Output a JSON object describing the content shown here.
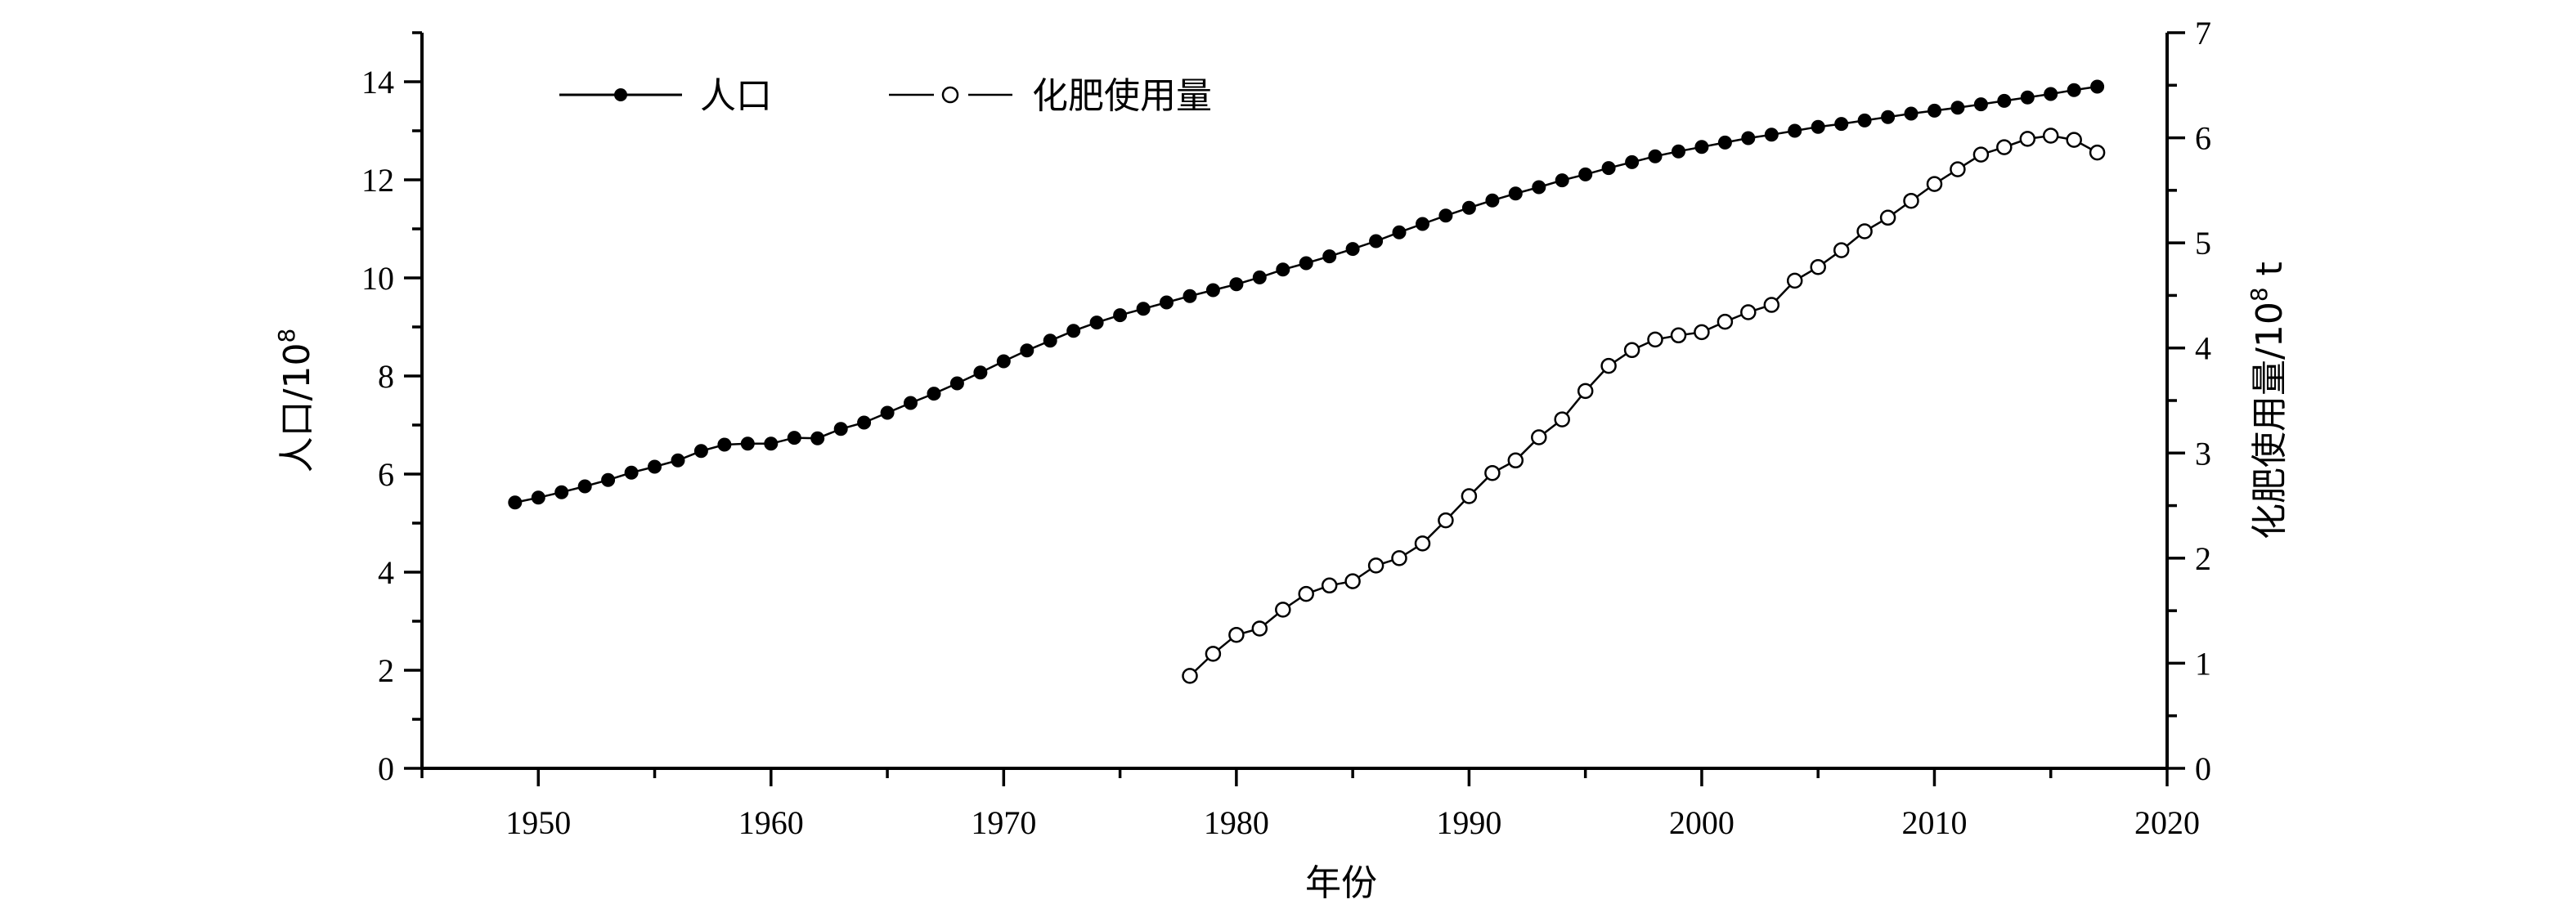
{
  "chart_data": {
    "type": "line",
    "xlabel": "年份",
    "ylabel_left": "人口/10",
    "ylabel_left_sup": "8",
    "ylabel_right": "化肥使用量/10",
    "ylabel_right_sup": "8",
    "ylabel_right_unit": " t",
    "xlim": [
      1945,
      2020
    ],
    "ylim_left": [
      0,
      15
    ],
    "ylim_right": [
      0,
      7
    ],
    "x_ticks": [
      1950,
      1960,
      1970,
      1980,
      1990,
      2000,
      2010,
      2020
    ],
    "y_left_ticks": [
      0,
      2,
      4,
      6,
      8,
      10,
      12,
      14
    ],
    "y_right_ticks": [
      0,
      1,
      2,
      3,
      4,
      5,
      6,
      7
    ],
    "grid": false,
    "legend_position": "top-left",
    "series": [
      {
        "name": "人口",
        "axis": "left",
        "marker": "filled-circle",
        "color": "#000000",
        "x": [
          1949,
          1950,
          1951,
          1952,
          1953,
          1954,
          1955,
          1956,
          1957,
          1958,
          1959,
          1960,
          1961,
          1962,
          1963,
          1964,
          1965,
          1966,
          1967,
          1968,
          1969,
          1970,
          1971,
          1972,
          1973,
          1974,
          1975,
          1976,
          1977,
          1978,
          1979,
          1980,
          1981,
          1982,
          1983,
          1984,
          1985,
          1986,
          1987,
          1988,
          1989,
          1990,
          1991,
          1992,
          1993,
          1994,
          1995,
          1996,
          1997,
          1998,
          1999,
          2000,
          2001,
          2002,
          2003,
          2004,
          2005,
          2006,
          2007,
          2008,
          2009,
          2010,
          2011,
          2012,
          2013,
          2014,
          2015,
          2016,
          2017
        ],
        "values": [
          5.42,
          5.52,
          5.63,
          5.75,
          5.88,
          6.03,
          6.15,
          6.28,
          6.47,
          6.6,
          6.62,
          6.62,
          6.74,
          6.73,
          6.92,
          7.05,
          7.25,
          7.45,
          7.64,
          7.85,
          8.07,
          8.3,
          8.52,
          8.72,
          8.92,
          9.09,
          9.24,
          9.37,
          9.5,
          9.63,
          9.75,
          9.87,
          10.01,
          10.17,
          10.3,
          10.44,
          10.59,
          10.75,
          10.93,
          11.1,
          11.27,
          11.43,
          11.58,
          11.72,
          11.85,
          11.99,
          12.11,
          12.24,
          12.36,
          12.48,
          12.58,
          12.67,
          12.76,
          12.85,
          12.92,
          13.0,
          13.08,
          13.14,
          13.21,
          13.28,
          13.35,
          13.41,
          13.47,
          13.54,
          13.61,
          13.68,
          13.75,
          13.83,
          13.9
        ]
      },
      {
        "name": "化肥使用量",
        "axis": "right",
        "marker": "open-circle",
        "color": "#000000",
        "x": [
          1978,
          1979,
          1980,
          1981,
          1982,
          1983,
          1984,
          1985,
          1986,
          1987,
          1988,
          1989,
          1990,
          1991,
          1992,
          1993,
          1994,
          1995,
          1996,
          1997,
          1998,
          1999,
          2000,
          2001,
          2002,
          2003,
          2004,
          2005,
          2006,
          2007,
          2008,
          2009,
          2010,
          2011,
          2012,
          2013,
          2014,
          2015,
          2016,
          2017
        ],
        "values": [
          0.88,
          1.09,
          1.27,
          1.33,
          1.51,
          1.66,
          1.74,
          1.78,
          1.93,
          2.0,
          2.14,
          2.36,
          2.59,
          2.81,
          2.93,
          3.15,
          3.32,
          3.59,
          3.83,
          3.98,
          4.08,
          4.12,
          4.15,
          4.25,
          4.34,
          4.41,
          4.64,
          4.77,
          4.93,
          5.11,
          5.24,
          5.4,
          5.56,
          5.7,
          5.84,
          5.91,
          5.99,
          6.02,
          5.98,
          5.86
        ]
      }
    ]
  }
}
